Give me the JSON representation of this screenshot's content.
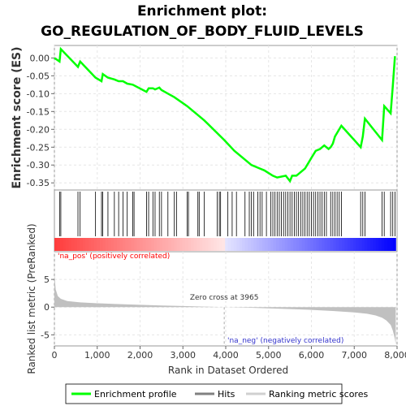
{
  "chart_data": {
    "type": "line",
    "title_line1": "Enrichment plot:",
    "title_line2": "GO_REGULATION_OF_BODY_FLUID_LEVELS",
    "top_panel": {
      "ylabel": "Enrichment score (ES)",
      "ylim": [
        -0.37,
        0.035
      ],
      "yticks": [
        0.0,
        -0.05,
        -0.1,
        -0.15,
        -0.2,
        -0.25,
        -0.3,
        -0.35
      ],
      "ytick_labels": [
        "0.00",
        "-0.05",
        "-0.10",
        "-0.15",
        "-0.20",
        "-0.25",
        "-0.30",
        "-0.35"
      ],
      "series": [
        {
          "name": "Enrichment profile",
          "color": "#00ff00",
          "x": [
            0,
            120,
            150,
            550,
            600,
            960,
            1100,
            1130,
            1250,
            1400,
            1500,
            1600,
            1700,
            1830,
            2150,
            2200,
            2300,
            2350,
            2450,
            2500,
            2650,
            2800,
            3100,
            3350,
            3500,
            3965,
            4200,
            4600,
            4800,
            4900,
            5100,
            5200,
            5400,
            5500,
            5550,
            5650,
            5700,
            5850,
            5950,
            6000,
            6100,
            6200,
            6300,
            6400,
            6450,
            6500,
            6550,
            6600,
            6700,
            7000,
            7150,
            7200,
            7250,
            7650,
            7700,
            7850,
            7900,
            7950
          ],
          "y": [
            0.0,
            -0.01,
            0.025,
            -0.025,
            -0.01,
            -0.055,
            -0.065,
            -0.045,
            -0.055,
            -0.06,
            -0.065,
            -0.065,
            -0.072,
            -0.075,
            -0.095,
            -0.085,
            -0.085,
            -0.088,
            -0.083,
            -0.09,
            -0.1,
            -0.11,
            -0.135,
            -0.16,
            -0.175,
            -0.23,
            -0.26,
            -0.3,
            -0.31,
            -0.315,
            -0.33,
            -0.335,
            -0.33,
            -0.345,
            -0.33,
            -0.33,
            -0.325,
            -0.31,
            -0.29,
            -0.28,
            -0.26,
            -0.255,
            -0.245,
            -0.255,
            -0.25,
            -0.24,
            -0.22,
            -0.21,
            -0.19,
            -0.23,
            -0.25,
            -0.22,
            -0.17,
            -0.23,
            -0.135,
            -0.155,
            -0.08,
            0.005
          ]
        }
      ]
    },
    "hits_panel": {
      "series_name": "Hits",
      "hit_positions": [
        120,
        150,
        550,
        600,
        960,
        1100,
        1130,
        1250,
        1400,
        1500,
        1600,
        1700,
        1830,
        1860,
        2150,
        2200,
        2300,
        2350,
        2450,
        2500,
        2650,
        2800,
        2850,
        3100,
        3130,
        3350,
        3380,
        3500,
        3800,
        3850,
        3880,
        4050,
        4150,
        4250,
        4450,
        4550,
        4600,
        4650,
        4750,
        4800,
        4850,
        4950,
        5050,
        5100,
        5150,
        5200,
        5250,
        5300,
        5350,
        5400,
        5450,
        5500,
        5550,
        5600,
        5650,
        5700,
        5750,
        5800,
        5850,
        5900,
        5950,
        6000,
        6050,
        6100,
        6150,
        6200,
        6250,
        6300,
        6350,
        6450,
        6500,
        6550,
        6600,
        6650,
        6700,
        7150,
        7200,
        7250,
        7650,
        7700,
        7850,
        7900,
        7950
      ]
    },
    "rank_panel": {
      "series_name": "Ranking metric scores",
      "ylabel": "Ranked list metric (PreRanked)",
      "xlabel": "Rank in Dataset Ordered",
      "ylim": [
        -7,
        10
      ],
      "yticks": [
        5,
        0,
        -5
      ],
      "ytick_labels": [
        "5",
        "0",
        "-5"
      ],
      "x": [
        0,
        30,
        80,
        150,
        300,
        600,
        1000,
        1500,
        2000,
        2500,
        3000,
        3500,
        3965,
        4500,
        5000,
        5500,
        6000,
        6500,
        7000,
        7300,
        7500,
        7650,
        7750,
        7850,
        7900,
        7950,
        7970
      ],
      "y": [
        6.0,
        3.2,
        2.0,
        1.5,
        1.1,
        0.85,
        0.7,
        0.55,
        0.42,
        0.3,
        0.2,
        0.1,
        0.0,
        -0.1,
        -0.22,
        -0.35,
        -0.5,
        -0.7,
        -0.95,
        -1.2,
        -1.5,
        -1.9,
        -2.4,
        -3.2,
        -4.2,
        -5.8,
        -6.8
      ],
      "zero_cross_label": "Zero cross at 3965",
      "zero_cross": 3965,
      "pos_label": "'na_pos' (positively correlated)",
      "neg_label": "'na_neg' (negatively correlated)"
    },
    "xaxis": {
      "xlim": [
        0,
        8000
      ],
      "xticks": [
        0,
        1000,
        2000,
        3000,
        4000,
        5000,
        6000,
        7000,
        8000
      ],
      "xtick_labels": [
        "0",
        "1,000",
        "2,000",
        "3,000",
        "4,000",
        "5,000",
        "6,000",
        "7,000",
        "8,000"
      ],
      "n_genes": 7970
    },
    "grid": true,
    "legend": {
      "placement": "bottom",
      "entries": [
        {
          "label": "Enrichment profile",
          "color": "#00ff00"
        },
        {
          "label": "Hits",
          "color": "#000000"
        },
        {
          "label": "Ranking metric scores",
          "color": "#c0c0c0"
        }
      ]
    },
    "colors": {
      "profile": "#00ff00",
      "pos": "#ff0000",
      "neg": "#0000ff",
      "pos_text": "#ff0000",
      "neg_text": "#0000cc",
      "grid": "#e6e6e6",
      "metric_fill": "#c0c0c0"
    }
  }
}
